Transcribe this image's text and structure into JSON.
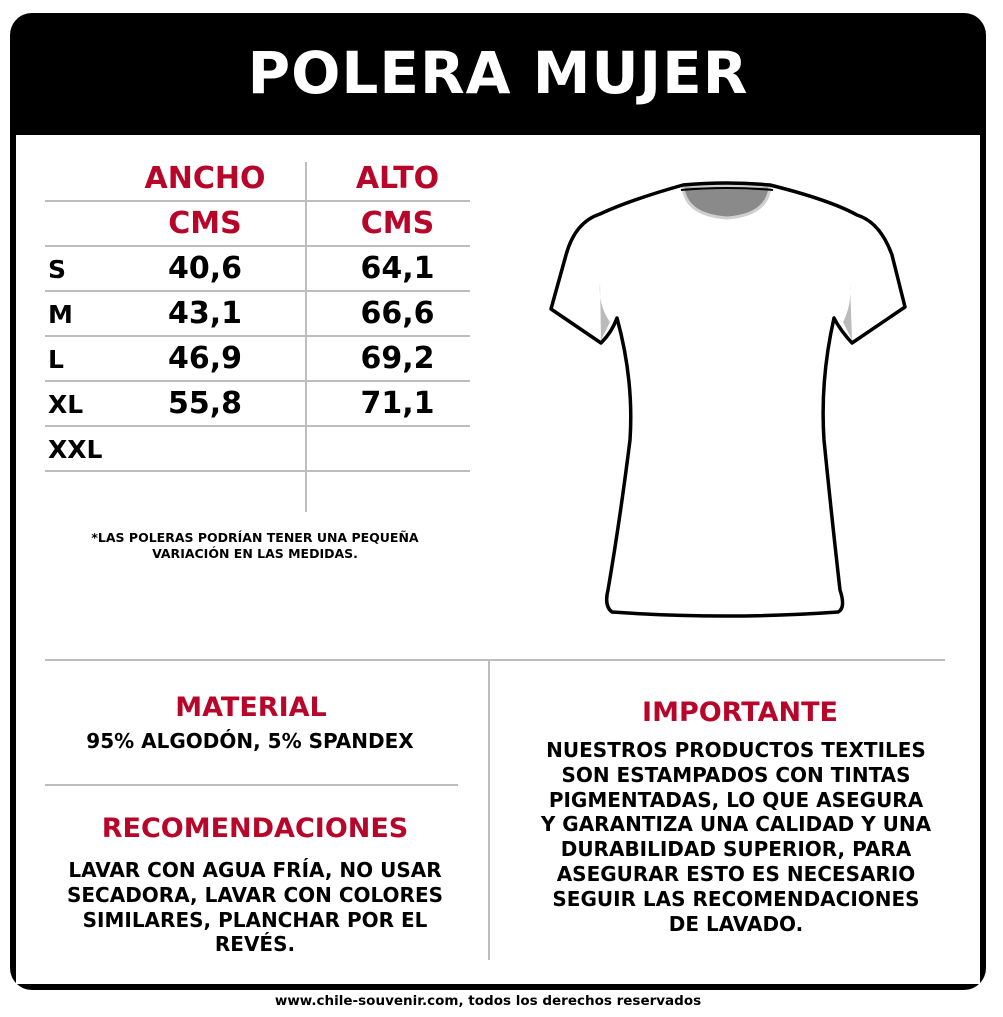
{
  "title": "POLERA MUJER",
  "table": {
    "headers": [
      {
        "label": "ANCHO",
        "unit": "CMS"
      },
      {
        "label": "ALTO",
        "unit": "CMS"
      }
    ],
    "rows": [
      {
        "size": "S",
        "ancho": "40,6",
        "alto": "64,1"
      },
      {
        "size": "M",
        "ancho": "43,1",
        "alto": "66,6"
      },
      {
        "size": "L",
        "ancho": "46,9",
        "alto": "69,2"
      },
      {
        "size": "XL",
        "ancho": "55,8",
        "alto": "71,1"
      },
      {
        "size": "XXL",
        "ancho": "",
        "alto": ""
      }
    ]
  },
  "note": [
    "*LAS POLERAS PODRÍAN TENER UNA PEQUEÑA",
    "VARIACIÓN EN LAS MEDIDAS."
  ],
  "material": {
    "title": "MATERIAL",
    "text": "95% ALGODÓN, 5% SPANDEX"
  },
  "recomendaciones": {
    "title": "RECOMENDACIONES",
    "lines": [
      "LAVAR CON AGUA FRÍA, NO USAR",
      "SECADORA, LAVAR CON COLORES",
      "SIMILARES, PLANCHAR POR EL",
      "REVÉS."
    ]
  },
  "importante": {
    "title": "IMPORTANTE",
    "lines": [
      "NUESTROS PRODUCTOS TEXTILES",
      "SON ESTAMPADOS CON TINTAS",
      "PIGMENTADAS, LO QUE ASEGURA",
      "Y GARANTIZA UNA CALIDAD Y UNA",
      "DURABILIDAD SUPERIOR, PARA",
      "ASEGURAR ESTO ES NECESARIO",
      "SEGUIR LAS RECOMENDACIONES",
      "DE LAVADO."
    ]
  },
  "footer": "www.chile-souvenir.com, todos los derechos reservados",
  "illustration": "t-shirt-outline",
  "colors": {
    "accent": "#b8062a",
    "header": "#000000"
  }
}
